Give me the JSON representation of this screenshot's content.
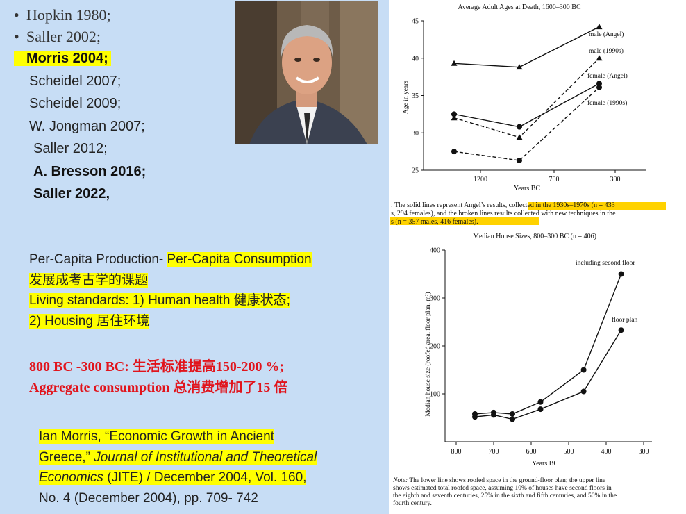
{
  "references": {
    "bullets": [
      "Hopkin 1980;",
      "Saller 2002;"
    ],
    "items": [
      {
        "text": "Morris 2004;",
        "bold": true,
        "highlight": true
      },
      {
        "text": "Scheidel 2007;",
        "bold": false,
        "highlight": false
      },
      {
        "text": "Scheidel 2009;",
        "bold": false,
        "highlight": false
      },
      {
        "text": "W. Jongman 2007;",
        "bold": false,
        "highlight": false
      },
      {
        "text": "Saller 2012;",
        "bold": false,
        "highlight": false
      },
      {
        "text": "A. Bresson 2016;",
        "bold": true,
        "highlight": false
      },
      {
        "text": "Saller 2022,",
        "bold": true,
        "highlight": false
      }
    ]
  },
  "per_capita": {
    "line1_a": "Per-Capita Production- ",
    "line1_b": "Per-Capita Consumption",
    "line2": "发展成考古学的课题",
    "line3": "Living standards:  1) Human health 健康状态;",
    "line4": "2) Housing 居住环境"
  },
  "growth": {
    "line1": "800 BC -300 BC: 生活标准提高150-200 %;",
    "line2": "Aggregate consumption 总消费增加了15 倍"
  },
  "citation": {
    "line1": "Ian Morris, “Economic Growth in Ancient",
    "line2_a": "Greece,” ",
    "line2_b": "Journal of Institutional and Theoretical",
    "line3_a": "Economics",
    "line3_b": " (JITE) / December 2004, Vol. 160,",
    "line4": "No. 4 (December 2004), pp. 709- 742"
  },
  "colors": {
    "slide_bg": "#c7ddf5",
    "highlight": "#ffff00",
    "red_text": "#e1141c"
  },
  "chart_data": [
    {
      "type": "line",
      "title": "Average Adult Ages at Death, 1600–300 BC",
      "ylabel": "Age in years",
      "xlabel": "Years BC",
      "x_tick_labels": [
        "1200",
        "700",
        "300"
      ],
      "ylim": [
        25,
        45
      ],
      "y_ticks": [
        25,
        30,
        35,
        40,
        45
      ],
      "grid": false,
      "series": [
        {
          "name": "male (Angel)",
          "marker": "triangle",
          "dash": false,
          "x": [
            "1600",
            "1000",
            "300"
          ],
          "values": [
            39.3,
            38.8,
            44.2
          ]
        },
        {
          "name": "male (1990s)",
          "marker": "triangle",
          "dash": true,
          "x": [
            "1600",
            "1000",
            "300"
          ],
          "values": [
            32.0,
            29.4,
            40.0
          ]
        },
        {
          "name": "female (Angel)",
          "marker": "circle",
          "dash": false,
          "x": [
            "1600",
            "1000",
            "300"
          ],
          "values": [
            32.5,
            30.8,
            36.6
          ]
        },
        {
          "name": "female (1990s)",
          "marker": "circle",
          "dash": true,
          "x": [
            "1600",
            "1000",
            "300"
          ],
          "values": [
            27.5,
            26.3,
            36.1
          ]
        }
      ],
      "caption_lines": [
        ": The solid lines represent Angel’s results, collected in the 1930s–1970s (n = 433",
        "s, 294 females), and the broken lines results collected with new techniques in the",
        "s (n = 357 males, 416 females)."
      ]
    },
    {
      "type": "line",
      "title": "Median House Sizes, 800–300 BC (n = 406)",
      "ylabel": "Median house size (roofed area, floor plan, m²)",
      "xlabel": "Years BC",
      "x_ticks": [
        800,
        700,
        600,
        500,
        400,
        300
      ],
      "xlim": [
        800,
        300
      ],
      "ylim": [
        0,
        400
      ],
      "y_ticks": [
        100,
        200,
        300,
        400
      ],
      "grid": false,
      "series": [
        {
          "name": "including second floor",
          "x": [
            750,
            700,
            650,
            575,
            460,
            360
          ],
          "values": [
            58,
            61,
            58,
            83,
            150,
            350
          ]
        },
        {
          "name": "floor plan",
          "x": [
            750,
            700,
            650,
            575,
            460,
            360
          ],
          "values": [
            52,
            56,
            47,
            68,
            105,
            233
          ]
        }
      ],
      "note_label": "Note:",
      "note_lines": [
        " The lower line shows roofed space in the ground-floor plan; the upper line",
        "shows estimated total roofed space, assuming 10% of houses have second floors in",
        "the eighth and seventh centuries, 25% in the sixth and fifth centuries, and 50% in the",
        "fourth century."
      ]
    }
  ]
}
